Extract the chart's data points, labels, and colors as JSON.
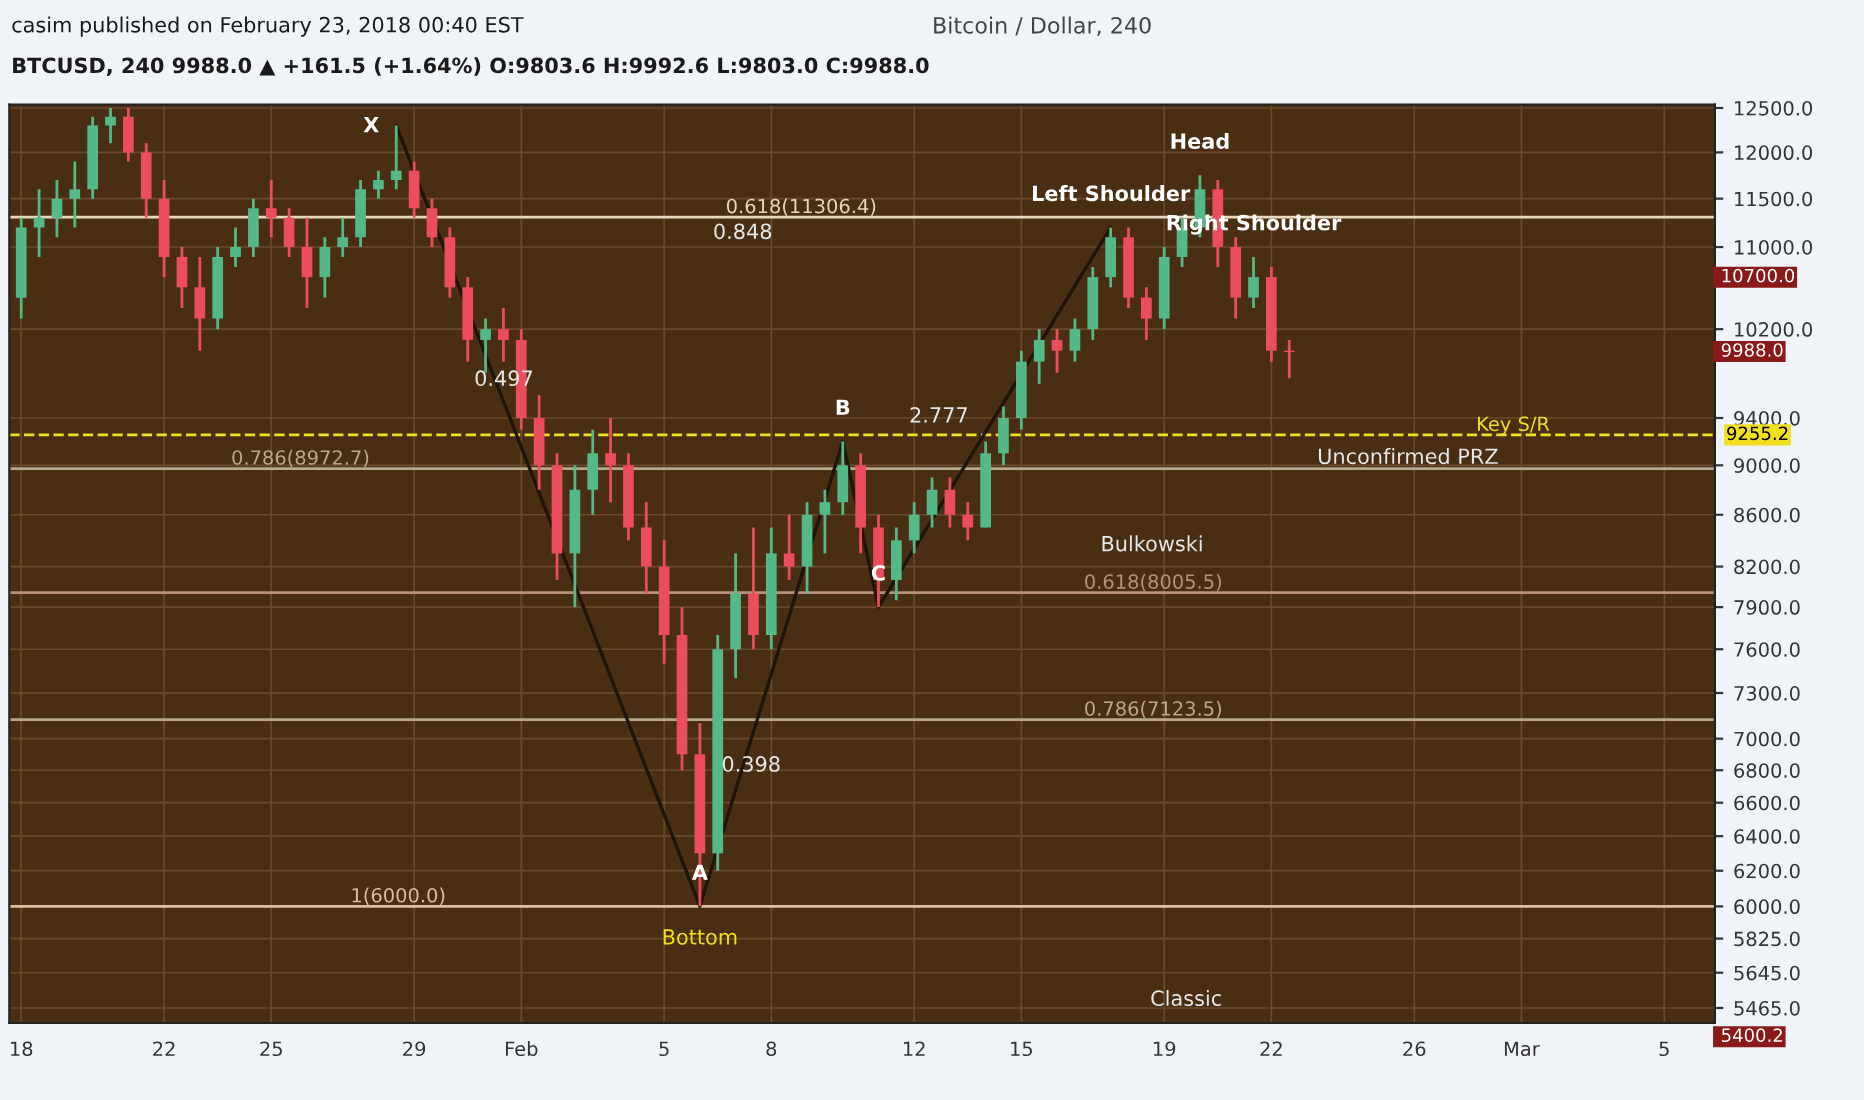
{
  "chart_data": {
    "type": "candlestick",
    "title": "Bitcoin / Dollar, 240",
    "x": [
      "2018-01-18T00:00",
      "2018-01-18T12:00",
      "2018-01-19T00:00",
      "2018-01-19T12:00",
      "2018-01-20T00:00",
      "2018-01-20T12:00",
      "2018-01-21T00:00",
      "2018-01-21T12:00",
      "2018-01-22T00:00",
      "2018-01-22T12:00",
      "2018-01-23T00:00",
      "2018-01-23T12:00",
      "2018-01-24T00:00",
      "2018-01-24T12:00",
      "2018-01-25T00:00",
      "2018-01-25T12:00",
      "2018-01-26T00:00",
      "2018-01-26T12:00",
      "2018-01-27T00:00",
      "2018-01-27T12:00",
      "2018-01-28T00:00",
      "2018-01-28T12:00",
      "2018-01-29T00:00",
      "2018-01-29T12:00",
      "2018-01-30T00:00",
      "2018-01-30T12:00",
      "2018-01-31T00:00",
      "2018-01-31T12:00",
      "2018-02-01T00:00",
      "2018-02-01T12:00",
      "2018-02-02T00:00",
      "2018-02-02T12:00",
      "2018-02-03T00:00",
      "2018-02-03T12:00",
      "2018-02-04T00:00",
      "2018-02-04T12:00",
      "2018-02-05T00:00",
      "2018-02-05T12:00",
      "2018-02-06T00:00",
      "2018-02-06T12:00",
      "2018-02-07T00:00",
      "2018-02-07T12:00",
      "2018-02-08T00:00",
      "2018-02-08T12:00",
      "2018-02-09T00:00",
      "2018-02-09T12:00",
      "2018-02-10T00:00",
      "2018-02-10T12:00",
      "2018-02-11T00:00",
      "2018-02-11T12:00",
      "2018-02-12T00:00",
      "2018-02-12T12:00",
      "2018-02-13T00:00",
      "2018-02-13T12:00",
      "2018-02-14T00:00",
      "2018-02-14T12:00",
      "2018-02-15T00:00",
      "2018-02-15T12:00",
      "2018-02-16T00:00",
      "2018-02-16T12:00",
      "2018-02-17T00:00",
      "2018-02-17T12:00",
      "2018-02-18T00:00",
      "2018-02-18T12:00",
      "2018-02-19T00:00",
      "2018-02-19T12:00",
      "2018-02-20T00:00",
      "2018-02-20T12:00",
      "2018-02-21T00:00",
      "2018-02-21T12:00",
      "2018-02-22T00:00",
      "2018-02-22T12:00"
    ],
    "ohlc": [
      [
        10500,
        11300,
        10300,
        11200
      ],
      [
        11200,
        11600,
        10900,
        11300
      ],
      [
        11300,
        11700,
        11100,
        11500
      ],
      [
        11500,
        11900,
        11200,
        11600
      ],
      [
        11600,
        12400,
        11500,
        12300
      ],
      [
        12300,
        12500,
        12100,
        12400
      ],
      [
        12400,
        12500,
        11900,
        12000
      ],
      [
        12000,
        12100,
        11300,
        11500
      ],
      [
        11500,
        11700,
        10700,
        10900
      ],
      [
        10900,
        11000,
        10400,
        10600
      ],
      [
        10600,
        10900,
        10000,
        10300
      ],
      [
        10300,
        11000,
        10200,
        10900
      ],
      [
        10900,
        11200,
        10800,
        11000
      ],
      [
        11000,
        11500,
        10900,
        11400
      ],
      [
        11400,
        11700,
        11100,
        11300
      ],
      [
        11300,
        11400,
        10900,
        11000
      ],
      [
        11000,
        11300,
        10400,
        10700
      ],
      [
        10700,
        11100,
        10500,
        11000
      ],
      [
        11000,
        11300,
        10900,
        11100
      ],
      [
        11100,
        11700,
        11000,
        11600
      ],
      [
        11600,
        11800,
        11500,
        11700
      ],
      [
        11700,
        12300,
        11600,
        11800
      ],
      [
        11800,
        11900,
        11300,
        11400
      ],
      [
        11400,
        11500,
        11000,
        11100
      ],
      [
        11100,
        11200,
        10500,
        10600
      ],
      [
        10600,
        10700,
        9900,
        10100
      ],
      [
        10100,
        10300,
        9800,
        10200
      ],
      [
        10200,
        10400,
        9900,
        10100
      ],
      [
        10100,
        10200,
        9300,
        9400
      ],
      [
        9400,
        9600,
        8800,
        9000
      ],
      [
        9000,
        9100,
        8100,
        8300
      ],
      [
        8300,
        9000,
        7900,
        8800
      ],
      [
        8800,
        9300,
        8600,
        9100
      ],
      [
        9100,
        9400,
        8700,
        9000
      ],
      [
        9000,
        9100,
        8400,
        8500
      ],
      [
        8500,
        8700,
        8000,
        8200
      ],
      [
        8200,
        8400,
        7500,
        7700
      ],
      [
        7700,
        7900,
        6800,
        6900
      ],
      [
        6900,
        7100,
        6000,
        6300
      ],
      [
        6300,
        7700,
        6200,
        7600
      ],
      [
        7600,
        8300,
        7400,
        8000
      ],
      [
        8000,
        8500,
        7600,
        7700
      ],
      [
        7700,
        8500,
        7600,
        8300
      ],
      [
        8300,
        8600,
        8100,
        8200
      ],
      [
        8200,
        8700,
        8000,
        8600
      ],
      [
        8600,
        8800,
        8300,
        8700
      ],
      [
        8700,
        9200,
        8600,
        9000
      ],
      [
        9000,
        9100,
        8300,
        8500
      ],
      [
        8500,
        8600,
        7900,
        8100
      ],
      [
        8100,
        8500,
        7950,
        8400
      ],
      [
        8400,
        8700,
        8300,
        8600
      ],
      [
        8600,
        8900,
        8500,
        8800
      ],
      [
        8800,
        8900,
        8500,
        8600
      ],
      [
        8600,
        8700,
        8400,
        8500
      ],
      [
        8500,
        9200,
        8500,
        9100
      ],
      [
        9100,
        9500,
        9000,
        9400
      ],
      [
        9400,
        10000,
        9300,
        9900
      ],
      [
        9900,
        10200,
        9700,
        10100
      ],
      [
        10100,
        10200,
        9800,
        10000
      ],
      [
        10000,
        10300,
        9900,
        10200
      ],
      [
        10200,
        10800,
        10100,
        10700
      ],
      [
        10700,
        11200,
        10600,
        11100
      ],
      [
        11100,
        11200,
        10400,
        10500
      ],
      [
        10500,
        10600,
        10100,
        10300
      ],
      [
        10300,
        11000,
        10200,
        10900
      ],
      [
        10900,
        11300,
        10800,
        11200
      ],
      [
        11200,
        11750,
        11100,
        11600
      ],
      [
        11600,
        11700,
        10800,
        11000
      ],
      [
        11000,
        11100,
        10300,
        10500
      ],
      [
        10500,
        10900,
        10400,
        10700
      ],
      [
        10700,
        10800,
        9900,
        10000
      ],
      [
        10000,
        10100,
        9750,
        9988
      ]
    ],
    "series": [
      {
        "type": "line",
        "color": "#1e140a",
        "x": [
          "2018-01-28T12:00",
          "2018-02-06T00:00",
          "2018-02-10T00:00",
          "2018-02-11T00:00",
          "2018-02-17T12:00"
        ],
        "values": [
          12300,
          6000,
          9200,
          7900,
          11200
        ]
      }
    ],
    "log": "y",
    "grid": true,
    "xlim": [
      "2018-01-17T16:00",
      "2018-03-06T10:00"
    ],
    "xticks": [
      {
        "value": "2018-01-18",
        "label": "18"
      },
      {
        "value": "2018-01-22",
        "label": "22"
      },
      {
        "value": "2018-01-25",
        "label": "25"
      },
      {
        "value": "2018-01-29",
        "label": "29"
      },
      {
        "value": "2018-02-01",
        "label": "Feb"
      },
      {
        "value": "2018-02-05",
        "label": "5"
      },
      {
        "value": "2018-02-08",
        "label": "8"
      },
      {
        "value": "2018-02-12",
        "label": "12"
      },
      {
        "value": "2018-02-15",
        "label": "15"
      },
      {
        "value": "2018-02-19",
        "label": "19"
      },
      {
        "value": "2018-02-22",
        "label": "22"
      },
      {
        "value": "2018-02-26",
        "label": "26"
      },
      {
        "value": "2018-03-01",
        "label": "Mar"
      },
      {
        "value": "2018-03-05",
        "label": "5"
      }
    ],
    "ylim": [
      5390,
      12540
    ],
    "yticks": [
      {
        "value": 5465,
        "label": "5465.0"
      },
      {
        "value": 5645,
        "label": "5645.0"
      },
      {
        "value": 5825,
        "label": "5825.0"
      },
      {
        "value": 6000,
        "label": "6000.0"
      },
      {
        "value": 6200,
        "label": "6200.0"
      },
      {
        "value": 6400,
        "label": "6400.0"
      },
      {
        "value": 6600,
        "label": "6600.0"
      },
      {
        "value": 6800,
        "label": "6800.0"
      },
      {
        "value": 7000,
        "label": "7000.0"
      },
      {
        "value": 7300,
        "label": "7300.0"
      },
      {
        "value": 7600,
        "label": "7600.0"
      },
      {
        "value": 7900,
        "label": "7900.0"
      },
      {
        "value": 8200,
        "label": "8200.0"
      },
      {
        "value": 8600,
        "label": "8600.0"
      },
      {
        "value": 9000,
        "label": "9000.0"
      },
      {
        "value": 9400,
        "label": "9400.0"
      },
      {
        "value": 10200,
        "label": "10200.0"
      },
      {
        "value": 11000,
        "label": "11000.0"
      },
      {
        "value": 11500,
        "label": "11500.0"
      },
      {
        "value": 12000,
        "label": "12000.0"
      },
      {
        "value": 12500,
        "label": "12500.0"
      }
    ],
    "ref_lines": [
      {
        "axis": "y",
        "value": 11306.4,
        "label": "0.618(11306.4)",
        "color": "#e8d8c0",
        "line_style": "solid"
      },
      {
        "axis": "y",
        "value": 8972.7,
        "label": "0.786(8972.7)",
        "color": "#b8a890",
        "line_style": "solid"
      },
      {
        "axis": "y",
        "value": 9255.2,
        "label": "Key S/R",
        "color": "#f0e020",
        "line_style": "dashed"
      },
      {
        "axis": "y",
        "value": 8005.5,
        "label": "0.618(8005.5)",
        "color": "#b89080",
        "line_style": "solid"
      },
      {
        "axis": "y",
        "value": 7123.5,
        "label": "0.786(7123.5)",
        "color": "#b8a890",
        "line_style": "solid"
      },
      {
        "axis": "y",
        "value": 6000,
        "label": "1(6000.0)",
        "color": "#d8c0a0",
        "line_style": "solid"
      }
    ],
    "annotations": [
      "casim published on February 23, 2018 00:40 EST",
      "BTCUSD, 240 9988.0 ▲ +161.5 (+1.64%) O:9803.6 H:9992.6 L:9803.0 C:9988.0",
      "0.848",
      "0.497",
      "2.777",
      "0.398",
      "Unconfirmed PRZ",
      "Bulkowski",
      "Classic",
      "10700.0",
      "9988.0",
      "5400.2",
      {
        "text": "X",
        "x": "2018-01-28T12:00",
        "y": 12300
      },
      {
        "text": "A",
        "x": "2018-02-06T00:00",
        "y": 6000
      },
      {
        "text": "Bottom",
        "x": "2018-02-06T00:00",
        "y": 6000
      },
      {
        "text": "B",
        "x": "2018-02-10T00:00",
        "y": 9200
      },
      {
        "text": "C",
        "x": "2018-02-11T00:00",
        "y": 7900
      },
      {
        "text": "Left Shoulder",
        "x": "2018-02-17T12:00",
        "y": 11200
      },
      {
        "text": "Head",
        "x": "2018-02-20T00:00",
        "y": 11750
      },
      {
        "text": "Right Shoulder",
        "x": "2018-02-21T12:00",
        "y": 10900
      },
      {
        "text": "9255.2",
        "x": "2018-03-06T10:00",
        "y": 9255.2
      }
    ]
  }
}
